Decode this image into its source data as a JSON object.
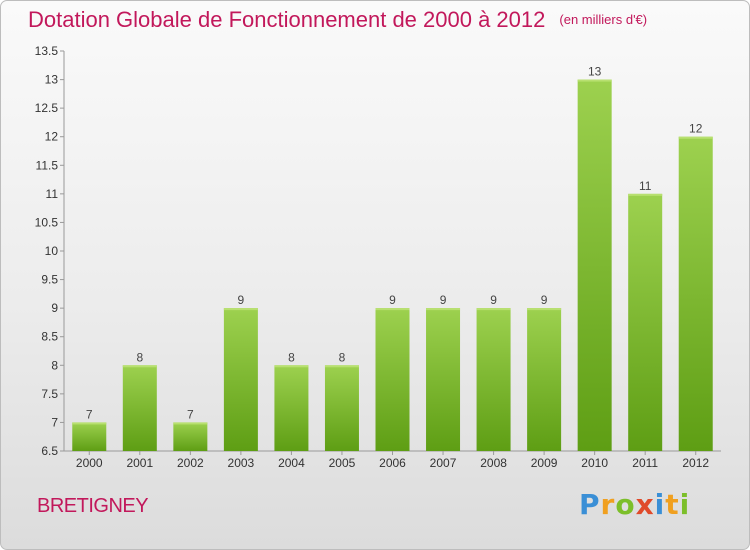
{
  "header": {
    "title": "Dotation Globale de Fonctionnement de 2000 à 2012",
    "subtitle": "(en milliers d'€)"
  },
  "footer": {
    "commune": "BRETIGNEY",
    "logo_letters": [
      "P",
      "r",
      "o",
      "x",
      "i",
      "t",
      "i"
    ]
  },
  "colors": {
    "title": "#c2185b",
    "bar_top": "#9dd14f",
    "bar_bottom": "#5e9e14"
  },
  "chart_data": {
    "type": "bar",
    "title": "Dotation Globale de Fonctionnement de 2000 à 2012",
    "subtitle": "(en milliers d'€)",
    "categories": [
      "2000",
      "2001",
      "2002",
      "2003",
      "2004",
      "2005",
      "2006",
      "2007",
      "2008",
      "2009",
      "2010",
      "2011",
      "2012"
    ],
    "values": [
      7,
      8,
      7,
      9,
      8,
      8,
      9,
      9,
      9,
      9,
      13,
      11,
      12
    ],
    "data_labels": [
      "7",
      "8",
      "7",
      "9",
      "8",
      "8",
      "9",
      "9",
      "9",
      "9",
      "13",
      "11",
      "12"
    ],
    "ylim": [
      6.5,
      13.5
    ],
    "yticks": [
      6.5,
      7,
      7.5,
      8,
      8.5,
      9,
      9.5,
      10,
      10.5,
      11,
      11.5,
      12,
      12.5,
      13,
      13.5
    ],
    "ytick_labels": [
      "6.5",
      "7",
      "7.5",
      "8",
      "8.5",
      "9",
      "9.5",
      "10",
      "10.5",
      "11",
      "11.5",
      "12",
      "12.5",
      "13",
      "13.5"
    ],
    "grid": false,
    "legend": "none"
  }
}
